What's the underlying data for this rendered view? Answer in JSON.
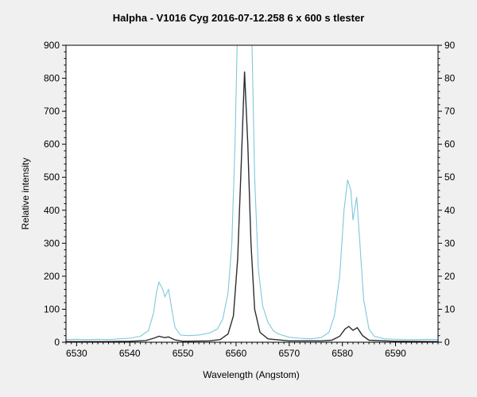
{
  "chart_data": {
    "type": "line",
    "title": "Halpha - V1016 Cyg   2016-07-12.258   6 x 600 s   tlester",
    "xlabel": "Wavelength (Angstom)",
    "ylabel": "Relative intensity",
    "xlim": [
      6528,
      6598
    ],
    "ylim": [
      0,
      900
    ],
    "y2lim": [
      0,
      90
    ],
    "xticks": [
      6530,
      6540,
      6550,
      6560,
      6570,
      6580,
      6590
    ],
    "yticks": [
      0,
      100,
      200,
      300,
      400,
      500,
      600,
      700,
      800,
      900
    ],
    "y2ticks": [
      0,
      10,
      20,
      30,
      40,
      50,
      60,
      70,
      80,
      90
    ],
    "grid": false,
    "series": [
      {
        "color": "#7ec8dc",
        "points": [
          [
            6528,
            8
          ],
          [
            6530,
            9
          ],
          [
            6532,
            8
          ],
          [
            6534,
            9
          ],
          [
            6536,
            8
          ],
          [
            6538,
            10
          ],
          [
            6540,
            12
          ],
          [
            6542,
            18
          ],
          [
            6543.5,
            35
          ],
          [
            6544.5,
            90
          ],
          [
            6545,
            150
          ],
          [
            6545.5,
            182
          ],
          [
            6546.2,
            160
          ],
          [
            6546.6,
            138
          ],
          [
            6547.3,
            160
          ],
          [
            6547.8,
            110
          ],
          [
            6548.5,
            45
          ],
          [
            6549.5,
            22
          ],
          [
            6551,
            20
          ],
          [
            6553,
            22
          ],
          [
            6555,
            28
          ],
          [
            6556.5,
            40
          ],
          [
            6557.5,
            70
          ],
          [
            6558.5,
            150
          ],
          [
            6559.2,
            300
          ],
          [
            6559.8,
            600
          ],
          [
            6560.2,
            900
          ],
          [
            6561.5,
            950
          ],
          [
            6563,
            900
          ],
          [
            6563.5,
            500
          ],
          [
            6564.2,
            220
          ],
          [
            6565,
            110
          ],
          [
            6566,
            60
          ],
          [
            6567,
            35
          ],
          [
            6568,
            25
          ],
          [
            6570,
            15
          ],
          [
            6572,
            12
          ],
          [
            6574,
            10
          ],
          [
            6576,
            14
          ],
          [
            6577.5,
            30
          ],
          [
            6578.5,
            80
          ],
          [
            6579.5,
            200
          ],
          [
            6580.3,
            400
          ],
          [
            6581,
            492
          ],
          [
            6581.6,
            460
          ],
          [
            6582,
            370
          ],
          [
            6582.7,
            440
          ],
          [
            6583.3,
            300
          ],
          [
            6584,
            130
          ],
          [
            6585,
            40
          ],
          [
            6586,
            18
          ],
          [
            6588,
            10
          ],
          [
            6590,
            9
          ],
          [
            6592,
            8
          ],
          [
            6594,
            8
          ],
          [
            6596,
            9
          ],
          [
            6598,
            8
          ]
        ]
      },
      {
        "color": "#2a2e30",
        "points": [
          [
            6528,
            2
          ],
          [
            6535,
            2
          ],
          [
            6540,
            3
          ],
          [
            6543,
            5
          ],
          [
            6544.5,
            12
          ],
          [
            6545.5,
            18
          ],
          [
            6546.5,
            14
          ],
          [
            6547.3,
            16
          ],
          [
            6548.5,
            7
          ],
          [
            6550,
            3
          ],
          [
            6555,
            4
          ],
          [
            6557,
            8
          ],
          [
            6558.5,
            25
          ],
          [
            6559.5,
            80
          ],
          [
            6560.3,
            250
          ],
          [
            6561,
            550
          ],
          [
            6561.6,
            820
          ],
          [
            6562.2,
            600
          ],
          [
            6562.8,
            300
          ],
          [
            6563.5,
            100
          ],
          [
            6564.5,
            30
          ],
          [
            6566,
            10
          ],
          [
            6570,
            4
          ],
          [
            6576,
            4
          ],
          [
            6578,
            6
          ],
          [
            6579.5,
            18
          ],
          [
            6580.5,
            40
          ],
          [
            6581.2,
            48
          ],
          [
            6582,
            36
          ],
          [
            6582.8,
            44
          ],
          [
            6583.8,
            20
          ],
          [
            6585,
            6
          ],
          [
            6590,
            3
          ],
          [
            6598,
            2
          ]
        ]
      }
    ]
  }
}
